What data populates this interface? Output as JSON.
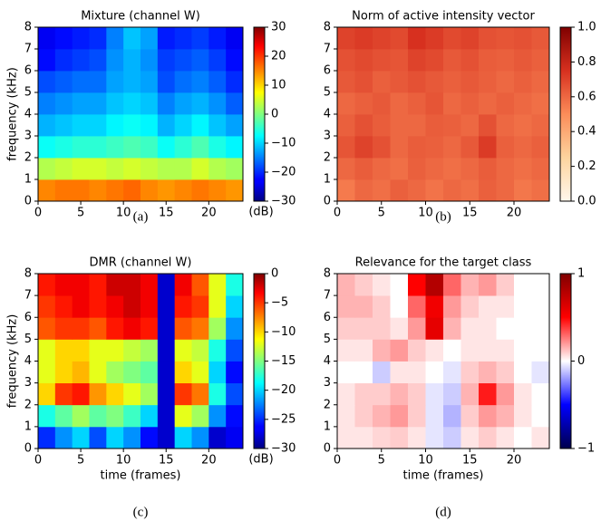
{
  "chart_data": [
    {
      "type": "heatmap",
      "title": "Mixture (channel W)",
      "ylabel": "frequency (kHz)",
      "caption": "(a)",
      "cbar_label": "(dB)",
      "cmap": "jet",
      "xlim": [
        0,
        24
      ],
      "ylim": [
        0,
        8
      ],
      "xticks": [
        0,
        5,
        10,
        15,
        20
      ],
      "yticks": [
        0,
        1,
        2,
        3,
        4,
        5,
        6,
        7,
        8
      ],
      "clim": [
        -30,
        30
      ],
      "cticks": [
        {
          "value": -30,
          "label": "−30"
        },
        {
          "value": -20,
          "label": "−20"
        },
        {
          "value": -10,
          "label": "−10"
        },
        0,
        10,
        20,
        30
      ],
      "z": [
        [
          15,
          16,
          16,
          15,
          16,
          17,
          15,
          14,
          15,
          16,
          15,
          14
        ],
        [
          3,
          4,
          5,
          5,
          4,
          5,
          4,
          3,
          3,
          5,
          3,
          2
        ],
        [
          -7,
          -6,
          -5,
          -5,
          -4,
          -3,
          -4,
          -7,
          -5,
          -3,
          -6,
          -8
        ],
        [
          -12,
          -11,
          -10,
          -10,
          -8,
          -7,
          -8,
          -12,
          -10,
          -8,
          -11,
          -13
        ],
        [
          -15,
          -14,
          -13,
          -13,
          -11,
          -10,
          -11,
          -15,
          -13,
          -12,
          -14,
          -17
        ],
        [
          -18,
          -17,
          -16,
          -16,
          -13,
          -12,
          -13,
          -18,
          -16,
          -15,
          -17,
          -20
        ],
        [
          -22,
          -20,
          -19,
          -18,
          -14,
          -12,
          -14,
          -19,
          -18,
          -17,
          -19,
          -22
        ],
        [
          -24,
          -22,
          -21,
          -20,
          -15,
          -11,
          -13,
          -21,
          -20,
          -19,
          -21,
          -24
        ]
      ]
    },
    {
      "type": "heatmap",
      "title": "Norm of active intensity vector",
      "caption": "(b)",
      "cmap": "orrd",
      "xlim": [
        0,
        24
      ],
      "ylim": [
        0,
        8
      ],
      "xticks": [
        0,
        5,
        10,
        15,
        20
      ],
      "yticks": [
        0,
        1,
        2,
        3,
        4,
        5,
        6,
        7,
        8
      ],
      "clim": [
        0,
        1
      ],
      "cticks": [
        {
          "value": 0,
          "label": "0.0"
        },
        0.2,
        0.4,
        0.6,
        0.8,
        {
          "value": 1,
          "label": "1.0"
        }
      ],
      "z": [
        [
          0.55,
          0.6,
          0.58,
          0.62,
          0.6,
          0.57,
          0.6,
          0.58,
          0.62,
          0.6,
          0.56,
          0.58
        ],
        [
          0.6,
          0.63,
          0.6,
          0.58,
          0.62,
          0.6,
          0.58,
          0.6,
          0.63,
          0.6,
          0.58,
          0.6
        ],
        [
          0.65,
          0.7,
          0.66,
          0.6,
          0.63,
          0.62,
          0.6,
          0.64,
          0.72,
          0.62,
          0.6,
          0.62
        ],
        [
          0.62,
          0.66,
          0.63,
          0.6,
          0.6,
          0.63,
          0.62,
          0.6,
          0.66,
          0.6,
          0.58,
          0.6
        ],
        [
          0.6,
          0.62,
          0.64,
          0.6,
          0.62,
          0.65,
          0.6,
          0.62,
          0.6,
          0.62,
          0.6,
          0.58
        ],
        [
          0.64,
          0.66,
          0.62,
          0.64,
          0.66,
          0.64,
          0.62,
          0.64,
          0.62,
          0.6,
          0.62,
          0.6
        ],
        [
          0.66,
          0.68,
          0.66,
          0.65,
          0.7,
          0.68,
          0.64,
          0.66,
          0.63,
          0.62,
          0.64,
          0.62
        ],
        [
          0.7,
          0.72,
          0.7,
          0.68,
          0.75,
          0.72,
          0.68,
          0.7,
          0.66,
          0.65,
          0.66,
          0.64
        ]
      ]
    },
    {
      "type": "heatmap",
      "title": "DMR (channel W)",
      "xlabel": "time (frames)",
      "ylabel": "frequency (kHz)",
      "caption": "(c)",
      "cbar_label": "(dB)",
      "cmap": "jet",
      "xlim": [
        0,
        24
      ],
      "ylim": [
        0,
        8
      ],
      "xticks": [
        0,
        5,
        10,
        15,
        20
      ],
      "yticks": [
        0,
        1,
        2,
        3,
        4,
        5,
        6,
        7,
        8
      ],
      "clim": [
        -30,
        0
      ],
      "cticks": [
        {
          "value": -30,
          "label": "−30"
        },
        {
          "value": -25,
          "label": "−25"
        },
        {
          "value": -20,
          "label": "−20"
        },
        {
          "value": -15,
          "label": "−15"
        },
        {
          "value": -10,
          "label": "−10"
        },
        {
          "value": -5,
          "label": "−5"
        },
        0
      ],
      "z": [
        [
          -25,
          -22,
          -20,
          -24,
          -20,
          -22,
          -26,
          -28,
          -20,
          -22,
          -28,
          -27
        ],
        [
          -18,
          -16,
          -14,
          -16,
          -15,
          -17,
          -20,
          -28,
          -12,
          -14,
          -22,
          -26
        ],
        [
          -10,
          -5,
          -4,
          -8,
          -10,
          -12,
          -14,
          -28,
          -5,
          -7,
          -18,
          -24
        ],
        [
          -12,
          -10,
          -9,
          -12,
          -14,
          -15,
          -16,
          -28,
          -10,
          -12,
          -20,
          -26
        ],
        [
          -12,
          -10,
          -10,
          -12,
          -12,
          -13,
          -14,
          -28,
          -12,
          -13,
          -18,
          -24
        ],
        [
          -6,
          -5,
          -5,
          -6,
          -4,
          -3,
          -4,
          -28,
          -6,
          -7,
          -14,
          -22
        ],
        [
          -5,
          -4,
          -3,
          -4,
          -3,
          -2,
          -3,
          -28,
          -4,
          -5,
          -12,
          -20
        ],
        [
          -4,
          -3,
          -3,
          -4,
          -2,
          -2,
          -3,
          -28,
          -3,
          -6,
          -12,
          -18
        ]
      ]
    },
    {
      "type": "heatmap",
      "title": "Relevance for the target class",
      "xlabel": "time (frames)",
      "caption": "(d)",
      "cmap": "seismic",
      "xlim": [
        0,
        24
      ],
      "ylim": [
        0,
        8
      ],
      "xticks": [
        0,
        5,
        10,
        15,
        20
      ],
      "yticks": [
        0,
        1,
        2,
        3,
        4,
        5,
        6,
        7,
        8
      ],
      "clim": [
        -1,
        1
      ],
      "cticks": [
        {
          "value": -1,
          "label": "−1"
        },
        0,
        1
      ],
      "z": [
        [
          0.05,
          0.05,
          0.08,
          0.1,
          0.05,
          -0.05,
          -0.1,
          0.05,
          0.1,
          0.05,
          0,
          0.05
        ],
        [
          0.05,
          0.1,
          0.15,
          0.2,
          0.1,
          -0.05,
          -0.15,
          0.1,
          0.2,
          0.15,
          0.05,
          0
        ],
        [
          0.05,
          0.1,
          0.1,
          0.15,
          0.1,
          -0.05,
          -0.1,
          0.15,
          0.45,
          0.2,
          0.05,
          0
        ],
        [
          0,
          0,
          -0.1,
          0.05,
          0.05,
          0,
          -0.05,
          0.1,
          0.15,
          0.1,
          0,
          -0.05
        ],
        [
          0.05,
          0.05,
          0.15,
          0.2,
          0.1,
          0.05,
          0,
          0.05,
          0.05,
          0.05,
          0,
          0
        ],
        [
          0.1,
          0.1,
          0.1,
          0.05,
          0.2,
          0.6,
          0.15,
          0.05,
          0.05,
          0,
          0,
          0
        ],
        [
          0.15,
          0.15,
          0.1,
          0,
          0.3,
          0.55,
          0.2,
          0.1,
          0.05,
          0.05,
          0,
          0
        ],
        [
          0.15,
          0.1,
          0.05,
          0,
          0.5,
          0.8,
          0.3,
          0.15,
          0.2,
          0.1,
          0,
          0
        ]
      ]
    }
  ]
}
